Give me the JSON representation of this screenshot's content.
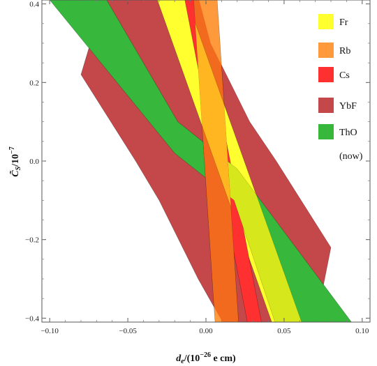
{
  "chart_data": {
    "type": "area",
    "title": "",
    "xlabel": "d_e/(10^-26 e cm)",
    "ylabel": "C_S/10^-7",
    "xlim": [
      -0.105,
      0.105
    ],
    "ylim": [
      -0.41,
      0.41
    ],
    "x_ticks": [
      -0.1,
      -0.05,
      0.0,
      0.05,
      0.1
    ],
    "x_tick_labels": [
      "−0.10",
      "−0.05",
      "0.00",
      "0.05",
      "0.10"
    ],
    "y_ticks": [
      -0.4,
      -0.2,
      0.0,
      0.2,
      0.4
    ],
    "y_tick_labels": [
      "−0.4",
      "−0.2",
      "0.0",
      "0.2",
      "0.4"
    ],
    "legend_position": "right",
    "legend_note": "(now)",
    "series": [
      {
        "name": "YbF",
        "color": "#c4474a",
        "polygon": [
          [
            -0.065,
            0.42
          ],
          [
            -0.005,
            0.42
          ],
          [
            0.003,
            0.3
          ],
          [
            0.028,
            0.1
          ],
          [
            0.045,
            0.0
          ],
          [
            0.08,
            -0.22
          ],
          [
            0.07,
            -0.42
          ],
          [
            0.012,
            -0.42
          ],
          [
            -0.005,
            -0.3
          ],
          [
            -0.03,
            -0.1
          ],
          [
            -0.045,
            0.0
          ],
          [
            -0.08,
            0.22
          ]
        ]
      },
      {
        "name": "ThO",
        "color": "#37b83c",
        "polygon": [
          [
            -0.102,
            0.42
          ],
          [
            -0.065,
            0.42
          ],
          [
            -0.018,
            0.1
          ],
          [
            0.02,
            -0.02
          ],
          [
            0.095,
            -0.42
          ],
          [
            0.045,
            -0.42
          ],
          [
            0.018,
            -0.1
          ],
          [
            -0.02,
            0.02
          ]
        ]
      },
      {
        "name": "Rb",
        "color": "#ff9a3c",
        "polygon": [
          [
            -0.008,
            0.42
          ],
          [
            0.007,
            0.42
          ],
          [
            0.021,
            -0.42
          ],
          [
            0.006,
            -0.42
          ]
        ]
      },
      {
        "name": "Fr",
        "color": "#ffff30",
        "polygon": [
          [
            -0.032,
            0.42
          ],
          [
            -0.013,
            0.42
          ],
          [
            0.062,
            -0.42
          ],
          [
            0.043,
            -0.42
          ]
        ]
      },
      {
        "name": "Cs",
        "color": "#ff3030",
        "polygon": [
          [
            -0.014,
            0.42
          ],
          [
            -0.005,
            0.42
          ],
          [
            0.036,
            -0.42
          ],
          [
            0.027,
            -0.42
          ]
        ]
      }
    ]
  }
}
